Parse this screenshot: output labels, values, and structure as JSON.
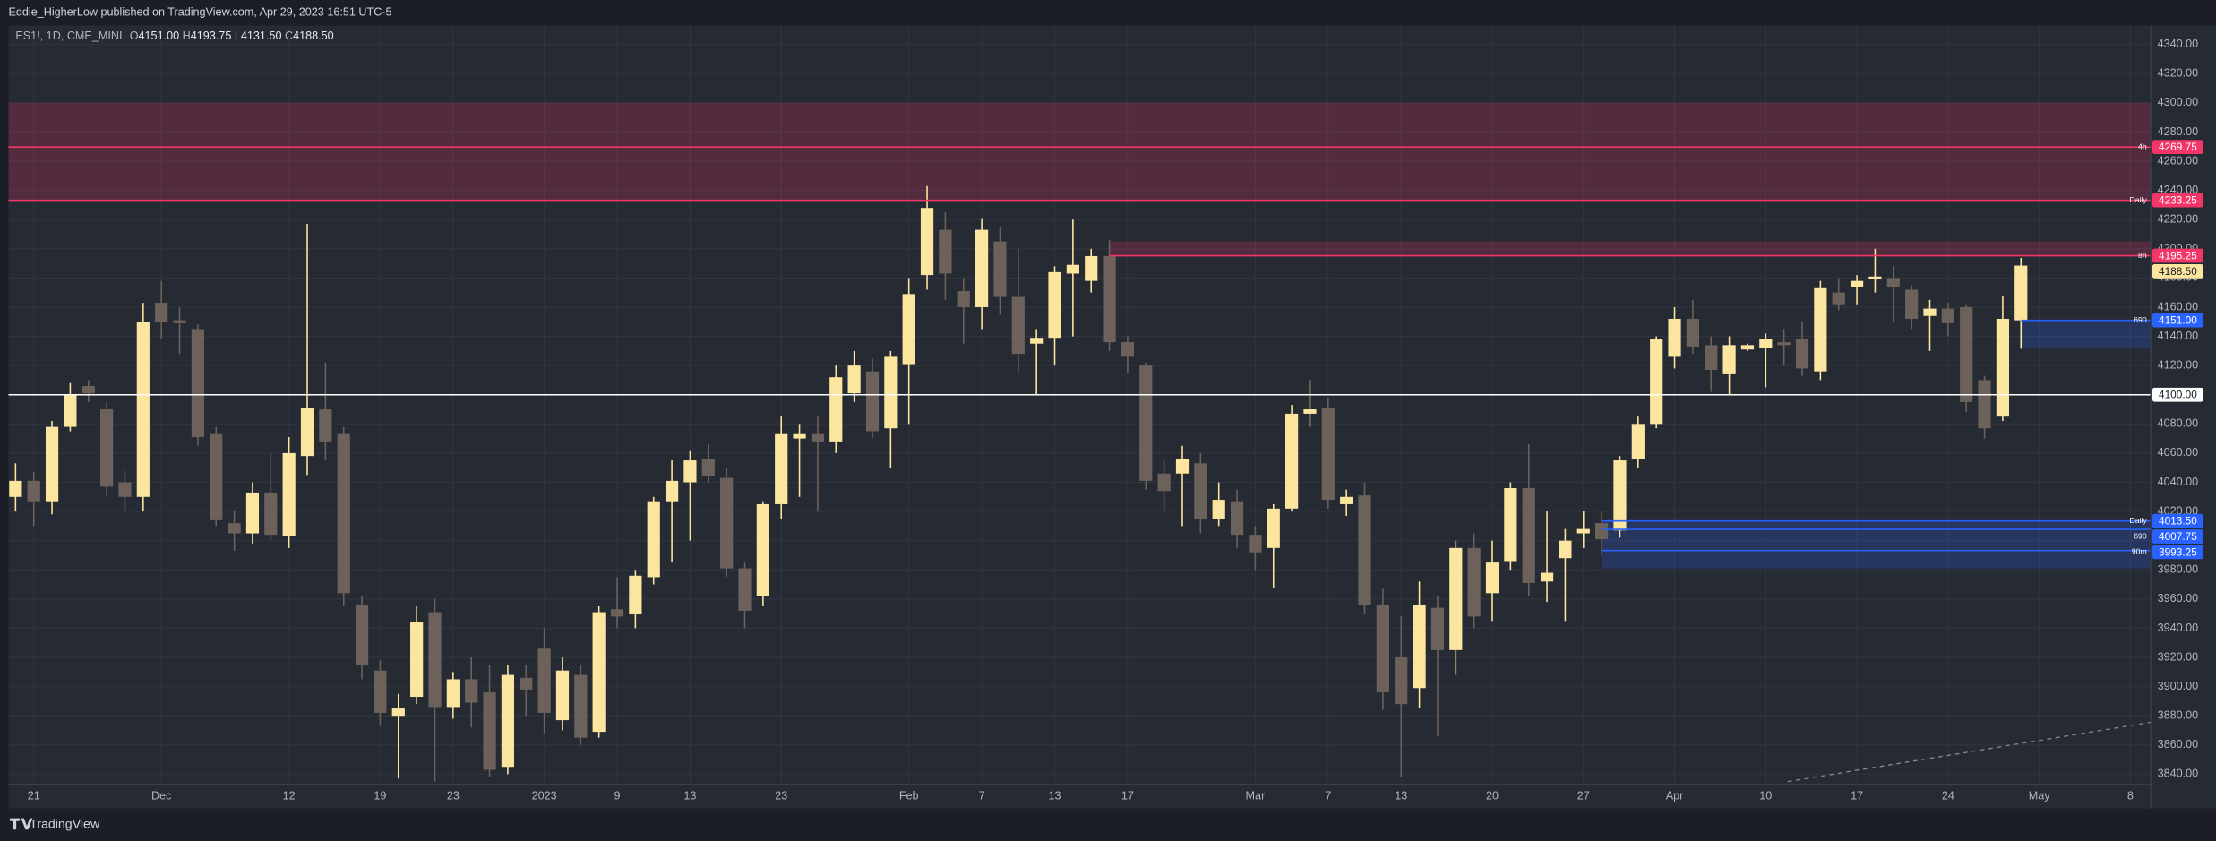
{
  "header": {
    "publisher": "Eddie_HigherLow published on TradingView.com, Apr 29, 2023 16:51 UTC-5",
    "symbol": "ES1!, 1D, CME_MINI",
    "ohlc": [
      {
        "key": "O",
        "text": "4151.00"
      },
      {
        "key": "H",
        "text": "4193.75"
      },
      {
        "key": "L",
        "text": "4131.50"
      },
      {
        "key": "C",
        "text": "4188.50"
      }
    ]
  },
  "footer": {
    "brand": "TradingView"
  },
  "chart_data": {
    "type": "candlestick",
    "up_color": "#fce59e",
    "down_color": "#6d625b",
    "categories": [
      null,
      "21",
      null,
      null,
      null,
      null,
      null,
      null,
      "Dec",
      null,
      null,
      null,
      null,
      null,
      null,
      "12",
      null,
      null,
      null,
      null,
      "19",
      null,
      null,
      null,
      "23",
      null,
      null,
      null,
      null,
      "2023",
      null,
      null,
      null,
      "9",
      null,
      null,
      null,
      "13",
      null,
      null,
      null,
      null,
      "23",
      null,
      null,
      null,
      null,
      null,
      null,
      "Feb",
      null,
      null,
      null,
      "7",
      null,
      null,
      null,
      "13",
      null,
      null,
      null,
      "17",
      null,
      null,
      null,
      null,
      null,
      null,
      "Mar",
      null,
      null,
      null,
      "7",
      null,
      null,
      null,
      "13",
      null,
      null,
      null,
      null,
      "20",
      null,
      null,
      null,
      null,
      "27",
      null,
      null,
      null,
      null,
      "Apr",
      null,
      null,
      null,
      null,
      "10",
      null,
      null,
      null,
      null,
      "17",
      null,
      null,
      null,
      null,
      "24",
      null,
      null,
      null,
      null,
      "May",
      null,
      null,
      null,
      null,
      "8"
    ],
    "open": [
      4030,
      4041,
      4027,
      4078,
      4106,
      4090,
      4040,
      4030,
      4163,
      4151,
      4145,
      4073,
      4012,
      4005,
      4033,
      4003,
      4058,
      4090,
      4073,
      3956,
      3911,
      3880,
      3893,
      3951,
      3886,
      3905,
      3896,
      3845,
      3906,
      3926,
      3877,
      3908,
      3869,
      3953,
      3950,
      3975,
      4027,
      4040,
      4056,
      4043,
      3981,
      3962,
      4025,
      4070,
      4073,
      4068,
      4101,
      4116,
      4077,
      4121,
      4182,
      4213,
      4171,
      4160,
      4205,
      4167,
      4135,
      4139,
      4183,
      4178,
      4195,
      4136,
      4120,
      4046,
      4046,
      4053,
      4015,
      4027,
      4004,
      3995,
      4022,
      4087,
      4091,
      4025,
      4031,
      3956,
      3920,
      3899,
      3954,
      3925,
      3995,
      3964,
      3986,
      4036,
      3972,
      3988,
      4005,
      4012,
      4007,
      4056,
      4080,
      4126,
      4152,
      4134,
      4114,
      4131,
      4132,
      4136,
      4138,
      4116,
      4170,
      4174,
      4179,
      4180,
      4172,
      4154,
      4159,
      4160,
      4110,
      4085,
      4151,
      null,
      null,
      null,
      null,
      null,
      null
    ],
    "high": [
      4053,
      4047,
      4082,
      4108,
      4110,
      4095,
      4048,
      4163,
      4178,
      4160,
      4148,
      4078,
      4020,
      4040,
      4060,
      4071,
      4217,
      4122,
      4078,
      3962,
      3918,
      3895,
      3955,
      3960,
      3910,
      3920,
      3915,
      3915,
      3915,
      3940,
      3920,
      3915,
      3955,
      3975,
      3980,
      4030,
      4055,
      4062,
      4066,
      4050,
      3985,
      4027,
      4085,
      4080,
      4085,
      4120,
      4130,
      4125,
      4130,
      4180,
      4243,
      4225,
      4180,
      4221,
      4215,
      4200,
      4145,
      4188,
      4220,
      4200,
      4206,
      4140,
      4122,
      4055,
      4065,
      4060,
      4040,
      4035,
      4010,
      4025,
      4093,
      4110,
      4098,
      4035,
      4040,
      3967,
      3948,
      3972,
      3962,
      4000,
      4005,
      4000,
      4040,
      4066,
      4020,
      4008,
      4020,
      4020,
      4058,
      4085,
      4140,
      4160,
      4165,
      4140,
      4140,
      4135,
      4142,
      4145,
      4150,
      4178,
      4180,
      4182,
      4200,
      4188,
      4175,
      4165,
      4163,
      4162,
      4113,
      4168,
      4193.75,
      null,
      null,
      null,
      null,
      null,
      null
    ],
    "low": [
      4020,
      4010,
      4018,
      4075,
      4095,
      4030,
      4020,
      4020,
      4138,
      4128,
      4065,
      4010,
      3993,
      3998,
      4000,
      3995,
      4045,
      4055,
      3955,
      3905,
      3873,
      3837,
      3888,
      3835,
      3878,
      3872,
      3838,
      3840,
      3880,
      3868,
      3870,
      3860,
      3865,
      3940,
      3940,
      3970,
      3985,
      4000,
      4040,
      3975,
      3940,
      3955,
      4015,
      4030,
      4020,
      4060,
      4095,
      4070,
      4050,
      4080,
      4172,
      4165,
      4135,
      4145,
      4155,
      4115,
      4100,
      4120,
      4140,
      4170,
      4130,
      4115,
      4035,
      4020,
      4010,
      4005,
      4010,
      3995,
      3980,
      3968,
      4020,
      4078,
      4022,
      4017,
      3950,
      3884,
      3838,
      3885,
      3866,
      3908,
      3940,
      3945,
      3980,
      3962,
      3958,
      3945,
      3995,
      3990,
      4002,
      4050,
      4077,
      4118,
      4128,
      4102,
      4100,
      4130,
      4105,
      4120,
      4113,
      4110,
      4158,
      4162,
      4170,
      4150,
      4145,
      4130,
      4140,
      4088,
      4070,
      4082,
      4131.5,
      null,
      null,
      null,
      null,
      null,
      null
    ],
    "close": [
      4041,
      4027,
      4078,
      4100,
      4101,
      4037,
      4030,
      4150,
      4150,
      4149,
      4071,
      4014,
      4005,
      4033,
      4004,
      4060,
      4091,
      4068,
      3964,
      3915,
      3882,
      3885,
      3944,
      3886,
      3905,
      3889,
      3843,
      3908,
      3898,
      3882,
      3911,
      3865,
      3951,
      3948,
      3976,
      4027,
      4041,
      4055,
      4044,
      3981,
      3952,
      4025,
      4073,
      4073,
      4068,
      4112,
      4120,
      4075,
      4126,
      4169,
      4228,
      4183,
      4160,
      4213,
      4167,
      4128,
      4139,
      4184,
      4189,
      4195,
      4136,
      4126,
      4041,
      4034,
      4056,
      4015,
      4028,
      4004,
      3992,
      4022,
      4087,
      4090,
      4028,
      4030,
      3956,
      3896,
      3888,
      3956,
      3925,
      3995,
      3948,
      3985,
      4036,
      3971,
      3978,
      4000,
      4008,
      4001,
      4055,
      4080,
      4138,
      4152,
      4133,
      4117,
      4134,
      4134,
      4138,
      4134,
      4118,
      4173,
      4162,
      4178,
      4181,
      4174,
      4152,
      4159,
      4149,
      4095,
      4077,
      4152,
      4188.5,
      null,
      null,
      null,
      null,
      null,
      null
    ],
    "ylim": [
      3833,
      4353
    ],
    "yticks": [
      {
        "value": 3840,
        "label": "3840.00"
      },
      {
        "value": 3860,
        "label": "3860.00"
      },
      {
        "value": 3880,
        "label": "3880.00"
      },
      {
        "value": 3900,
        "label": "3900.00"
      },
      {
        "value": 3920,
        "label": "3920.00"
      },
      {
        "value": 3940,
        "label": "3940.00"
      },
      {
        "value": 3960,
        "label": "3960.00"
      },
      {
        "value": 3980,
        "label": "3980.00"
      },
      {
        "value": 4000,
        "label": "4000.00"
      },
      {
        "value": 4020,
        "label": "4020.00"
      },
      {
        "value": 4040,
        "label": "4040.00"
      },
      {
        "value": 4060,
        "label": "4060.00"
      },
      {
        "value": 4080,
        "label": "4080.00"
      },
      {
        "value": 4100,
        "label": "4100.00"
      },
      {
        "value": 4120,
        "label": "4120.00"
      },
      {
        "value": 4140,
        "label": "4140.00"
      },
      {
        "value": 4160,
        "label": "4160.00"
      },
      {
        "value": 4180,
        "label": "4180.00"
      },
      {
        "value": 4200,
        "label": "4200.00"
      },
      {
        "value": 4220,
        "label": "4220.00"
      },
      {
        "value": 4240,
        "label": "4240.00"
      },
      {
        "value": 4260,
        "label": "4260.00"
      },
      {
        "value": 4280,
        "label": "4280.00"
      },
      {
        "value": 4300,
        "label": "4300.00"
      },
      {
        "value": 4320,
        "label": "4320.00"
      },
      {
        "value": 4340,
        "label": "4340.00"
      }
    ],
    "grid": true,
    "zones": [
      {
        "from": 4300,
        "to": 4233.25,
        "color": "rgba(242,54,104,0.22)"
      },
      {
        "from": 4205,
        "to": 4195.25,
        "color": "rgba(242,54,104,0.22)"
      },
      {
        "from": 4151,
        "to": 4131.5,
        "color": "rgba(41,98,255,0.22)"
      },
      {
        "from": 4013.5,
        "to": 3981,
        "color": "rgba(41,98,255,0.22)"
      }
    ],
    "levels": [
      {
        "value": 4269.75,
        "tag": "4h",
        "color": "#f23668"
      },
      {
        "value": 4233.25,
        "tag": "Daily",
        "color": "#f23668"
      },
      {
        "value": 4195.25,
        "tag": "8h",
        "color": "#f23668"
      },
      {
        "value": 4188.5,
        "value_label": "4188.50",
        "color": "#fce59e"
      },
      {
        "value": 4151,
        "value_label": "4151.00",
        "tag": "690",
        "color": "#2962ff"
      },
      {
        "value": 4100,
        "value_label": "4100.00",
        "color": "#ffffff"
      },
      {
        "value": 4013.5,
        "value_label": "4013.50",
        "tag": "Daily",
        "color": "#2962ff"
      },
      {
        "value": 4007.75,
        "tag": "690",
        "color": "#2962ff"
      },
      {
        "value": 3993.25,
        "tag": "90m",
        "color": "#2962ff"
      }
    ]
  }
}
